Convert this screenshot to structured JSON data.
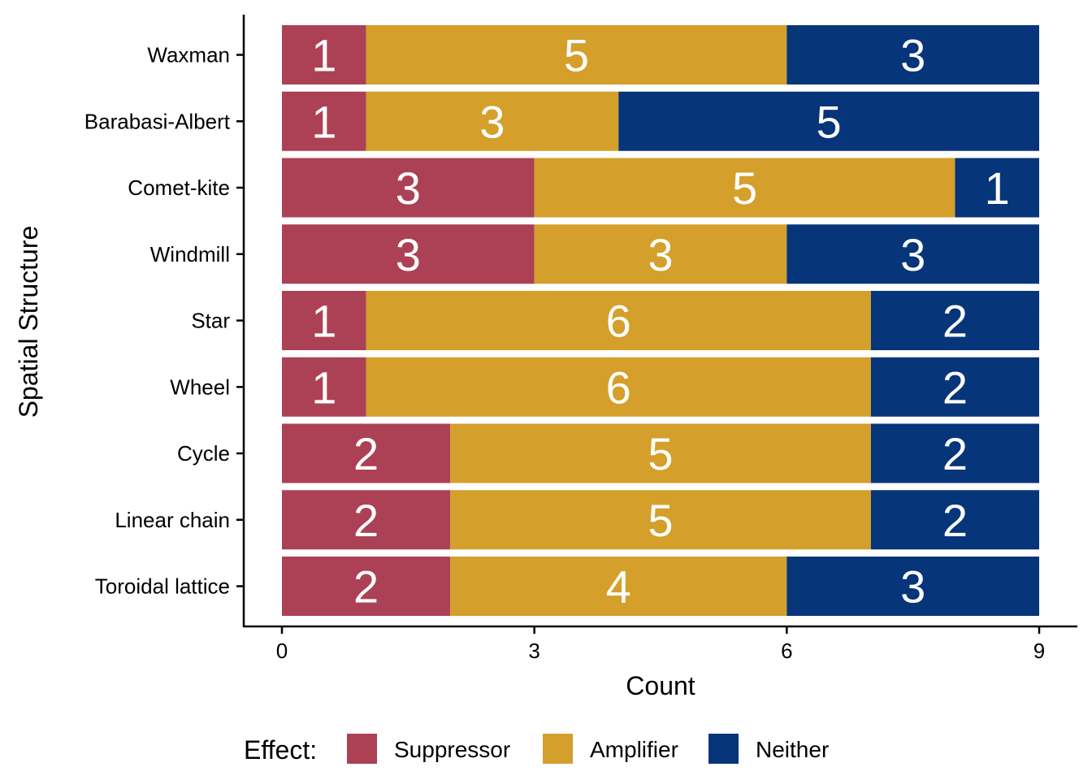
{
  "chart_data": {
    "type": "bar",
    "orientation": "horizontal",
    "stacked": true,
    "title": "",
    "xlabel": "Count",
    "ylabel": "Spatial Structure",
    "xlim": [
      0,
      9
    ],
    "xticks": [
      "0",
      "3",
      "6",
      "9"
    ],
    "grid": false,
    "legend_position": "bottom",
    "legend_title": "Effect:",
    "categories": [
      "Waxman",
      "Barabasi-Albert",
      "Comet-kite",
      "Windmill",
      "Star",
      "Wheel",
      "Cycle",
      "Linear chain",
      "Toroidal lattice"
    ],
    "series": [
      {
        "name": "Suppressor",
        "color": "#AC4155",
        "values": [
          1,
          1,
          3,
          3,
          1,
          1,
          2,
          2,
          2
        ]
      },
      {
        "name": "Amplifier",
        "color": "#D49F2A",
        "values": [
          5,
          3,
          5,
          3,
          6,
          6,
          5,
          5,
          4
        ]
      },
      {
        "name": "Neither",
        "color": "#07357A",
        "values": [
          3,
          5,
          1,
          3,
          2,
          2,
          2,
          2,
          3
        ]
      }
    ]
  }
}
